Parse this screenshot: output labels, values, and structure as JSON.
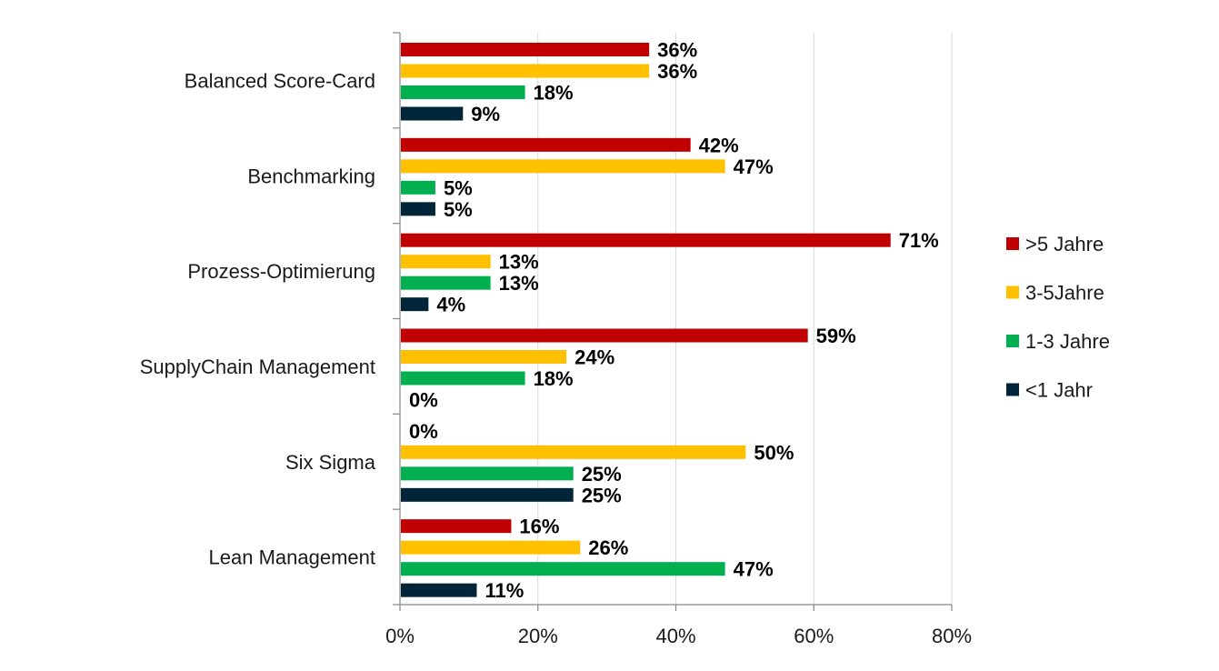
{
  "chart_data": {
    "type": "bar",
    "orientation": "horizontal",
    "categories": [
      "Balanced Score-Card",
      "Benchmarking",
      "Prozess-Optimierung",
      "SupplyChain Management",
      "Six Sigma",
      "Lean Management"
    ],
    "series": [
      {
        "name": ">5 Jahre",
        "color": "#C00000",
        "values": [
          36,
          42,
          71,
          59,
          0,
          16
        ],
        "labels": [
          "36%",
          "42%",
          "71%",
          "59%",
          "0%",
          "16%"
        ]
      },
      {
        "name": "3-5Jahre",
        "color": "#FFC000",
        "values": [
          36,
          47,
          13,
          24,
          50,
          26
        ],
        "labels": [
          "36%",
          "47%",
          "13%",
          "24%",
          "50%",
          "26%"
        ]
      },
      {
        "name": "1-3 Jahre",
        "color": "#00B050",
        "values": [
          18,
          5,
          13,
          18,
          25,
          47
        ],
        "labels": [
          "18%",
          "5%",
          "13%",
          "18%",
          "25%",
          "47%"
        ]
      },
      {
        "name": "<1 Jahr",
        "color": "#002538",
        "values": [
          9,
          5,
          4,
          0,
          25,
          11
        ],
        "labels": [
          "9%",
          "5%",
          "4%",
          "0%",
          "25%",
          "11%"
        ]
      }
    ],
    "xticks": [
      "0%",
      "20%",
      "40%",
      "60%",
      "80%"
    ],
    "xlim": [
      0,
      80
    ],
    "grid": "vertical",
    "legend_position": "right",
    "title": "",
    "xlabel": "",
    "ylabel": ""
  }
}
